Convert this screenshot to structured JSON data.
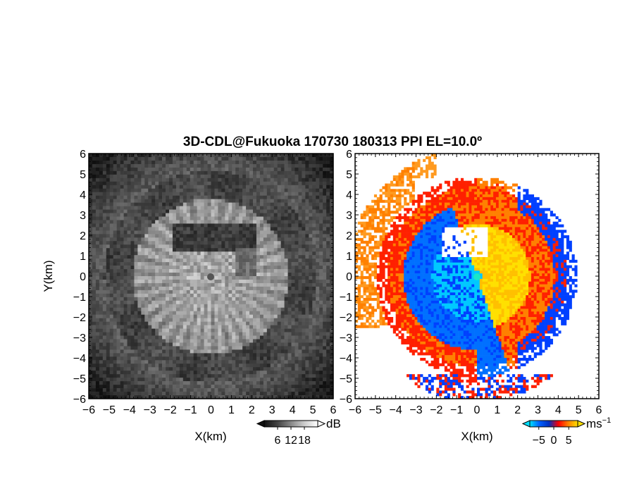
{
  "chart_data": {
    "type": "heatmap",
    "title": "3D-CDL@Fukuoka 170730 180313 PPI EL=10.0º",
    "panels": [
      {
        "name": "",
        "xlabel": "X(km)",
        "ylabel": "Y(km)",
        "xlim": [
          -6,
          6
        ],
        "ylim": [
          -6,
          6
        ],
        "xticks": [
          "−6",
          "−5",
          "−4",
          "−3",
          "−2",
          "−1",
          "0",
          "1",
          "2",
          "3",
          "4",
          "5",
          "6"
        ],
        "yticks": [
          "6",
          "5",
          "4",
          "3",
          "2",
          "1",
          "0",
          "−1",
          "−2",
          "−3",
          "−4",
          "−5",
          "−6"
        ],
        "colormap": "grayscale",
        "colorbar": {
          "unit": "dB",
          "ticks": [
            "6",
            "12",
            "18"
          ],
          "range": [
            0,
            24
          ]
        }
      },
      {
        "name": "",
        "xlabel": "X(km)",
        "ylabel": "",
        "xlim": [
          -6,
          6
        ],
        "ylim": [
          -6,
          6
        ],
        "xticks": [
          "−6",
          "−5",
          "−4",
          "−3",
          "−2",
          "−1",
          "0",
          "1",
          "2",
          "3",
          "4",
          "5",
          "6"
        ],
        "yticks": [
          "6",
          "5",
          "4",
          "3",
          "2",
          "1",
          "0",
          "−1",
          "−2",
          "−3",
          "−4",
          "−5",
          "−6"
        ],
        "colormap": "blue-red diverging",
        "colorbar": {
          "unit": "ms",
          "unit_sup": "−1",
          "ticks": [
            "−5",
            "0",
            "5"
          ],
          "range": [
            -8,
            8
          ]
        }
      }
    ]
  },
  "colors": {
    "negative": "#0040ff",
    "negative_light": "#00c8ff",
    "positive": "#ff2000",
    "positive_mid": "#ff8000",
    "positive_high": "#ffe000"
  }
}
